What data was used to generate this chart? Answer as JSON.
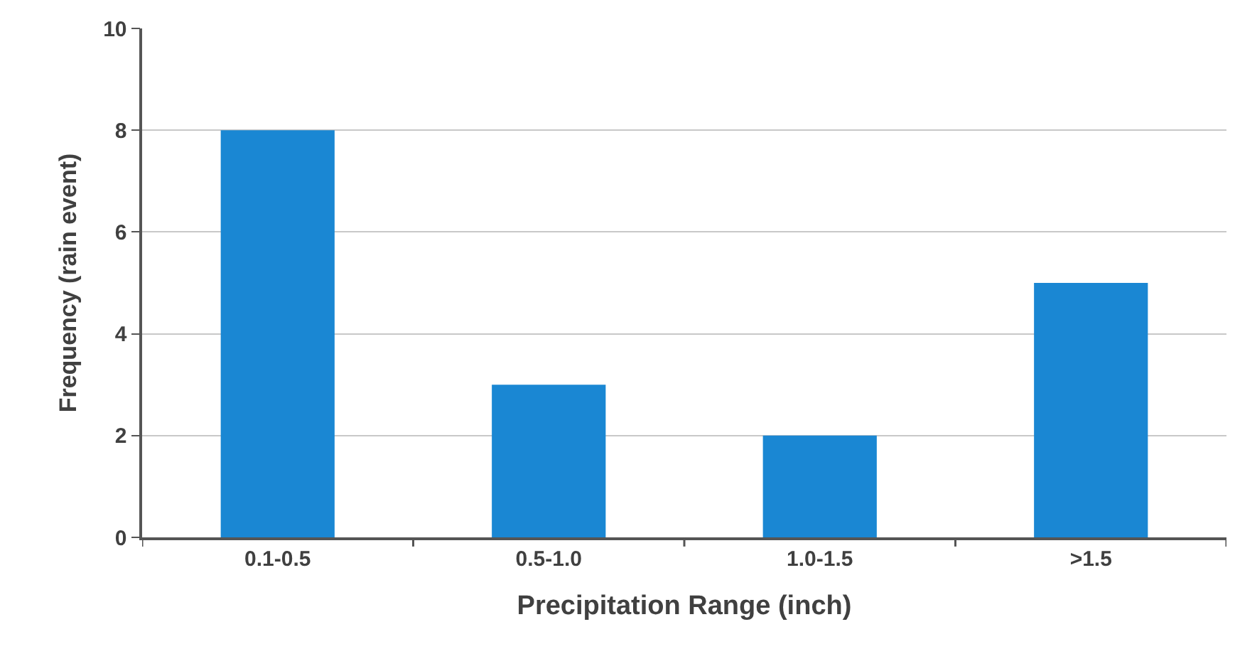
{
  "chart_data": {
    "type": "bar",
    "xlabel": "Precipitation Range (inch)",
    "ylabel": "Frequency (rain event)",
    "categories": [
      "0.1-0.5",
      "0.5-1.0",
      "1.0-1.5",
      ">1.5"
    ],
    "values": [
      8,
      3,
      2,
      5
    ],
    "color": "#1a87d3",
    "ylim": [
      0,
      10
    ],
    "yticks": [
      0,
      2,
      4,
      6,
      8,
      10
    ],
    "grid": "y"
  }
}
